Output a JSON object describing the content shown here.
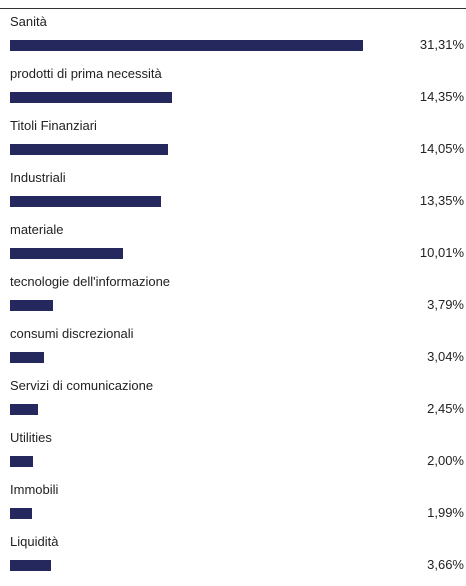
{
  "chart_data": {
    "type": "bar",
    "orientation": "horizontal",
    "bar_color": "#24285c",
    "value_format": "percent-comma",
    "categories": [
      "Sanità",
      "prodotti di prima necessità",
      "Titoli Finanziari",
      "Industriali",
      "materiale",
      "tecnologie dell'informazione",
      "consumi discrezionali",
      "Servizi di comunicazione",
      "Utilities",
      "Immobili",
      "Liquidità"
    ],
    "values": [
      31.31,
      14.35,
      14.05,
      13.35,
      10.01,
      3.79,
      3.04,
      2.45,
      2.0,
      1.99,
      3.66
    ],
    "value_labels": [
      "31,31%",
      "14,35%",
      "14,05%",
      "13,35%",
      "10,01%",
      "3,79%",
      "3,04%",
      "2,45%",
      "2,00%",
      "1,99%",
      "3,66%"
    ],
    "xlim": [
      0,
      31.31
    ],
    "grid": false,
    "legend": "none"
  }
}
